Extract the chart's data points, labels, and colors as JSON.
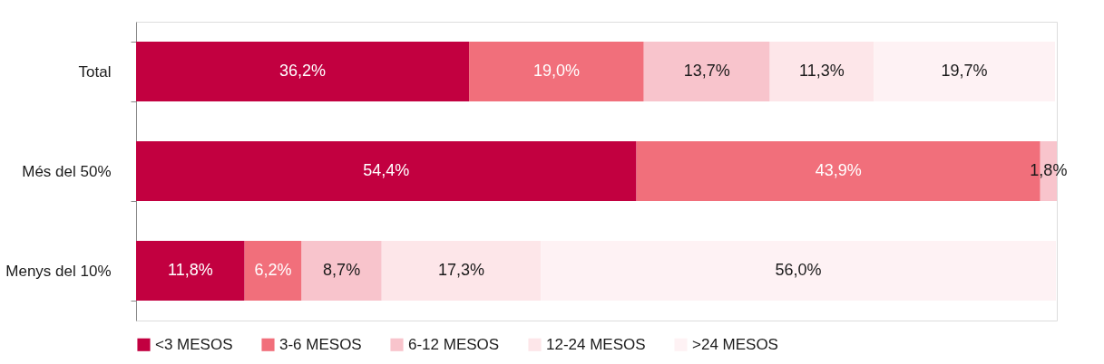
{
  "chart_data": {
    "type": "bar",
    "orientation": "horizontal",
    "stacked": true,
    "categories": [
      "Total",
      "Més del 50%",
      "Menys del 10%"
    ],
    "series": [
      {
        "name": "<3 MESOS",
        "color": "#c20040",
        "values": [
          36.2,
          54.4,
          11.8
        ],
        "value_labels": [
          "36,2%",
          "54,4%",
          "11,8%"
        ]
      },
      {
        "name": "3-6 MESOS",
        "color": "#f16f7b",
        "values": [
          19.0,
          43.9,
          6.2
        ],
        "value_labels": [
          "19,0%",
          "43,9%",
          "6,2%"
        ]
      },
      {
        "name": "6-12 MESOS",
        "color": "#f8c4cc",
        "values": [
          13.7,
          1.8,
          8.7
        ],
        "value_labels": [
          "13,7%",
          "1,8%",
          "8,7%"
        ]
      },
      {
        "name": "12-24 MESOS",
        "color": "#fde6e9",
        "values": [
          11.3,
          null,
          17.3
        ],
        "value_labels": [
          "11,3%",
          null,
          "17,3%"
        ]
      },
      {
        "name": ">24 MESOS",
        "color": "#fef2f4",
        "values": [
          19.7,
          null,
          56.0
        ],
        "value_labels": [
          "19,7%",
          null,
          "56,0%"
        ]
      }
    ],
    "xlim": [
      0,
      100.1
    ],
    "tick_labels": "y",
    "grid": false,
    "legend": "bottom"
  }
}
